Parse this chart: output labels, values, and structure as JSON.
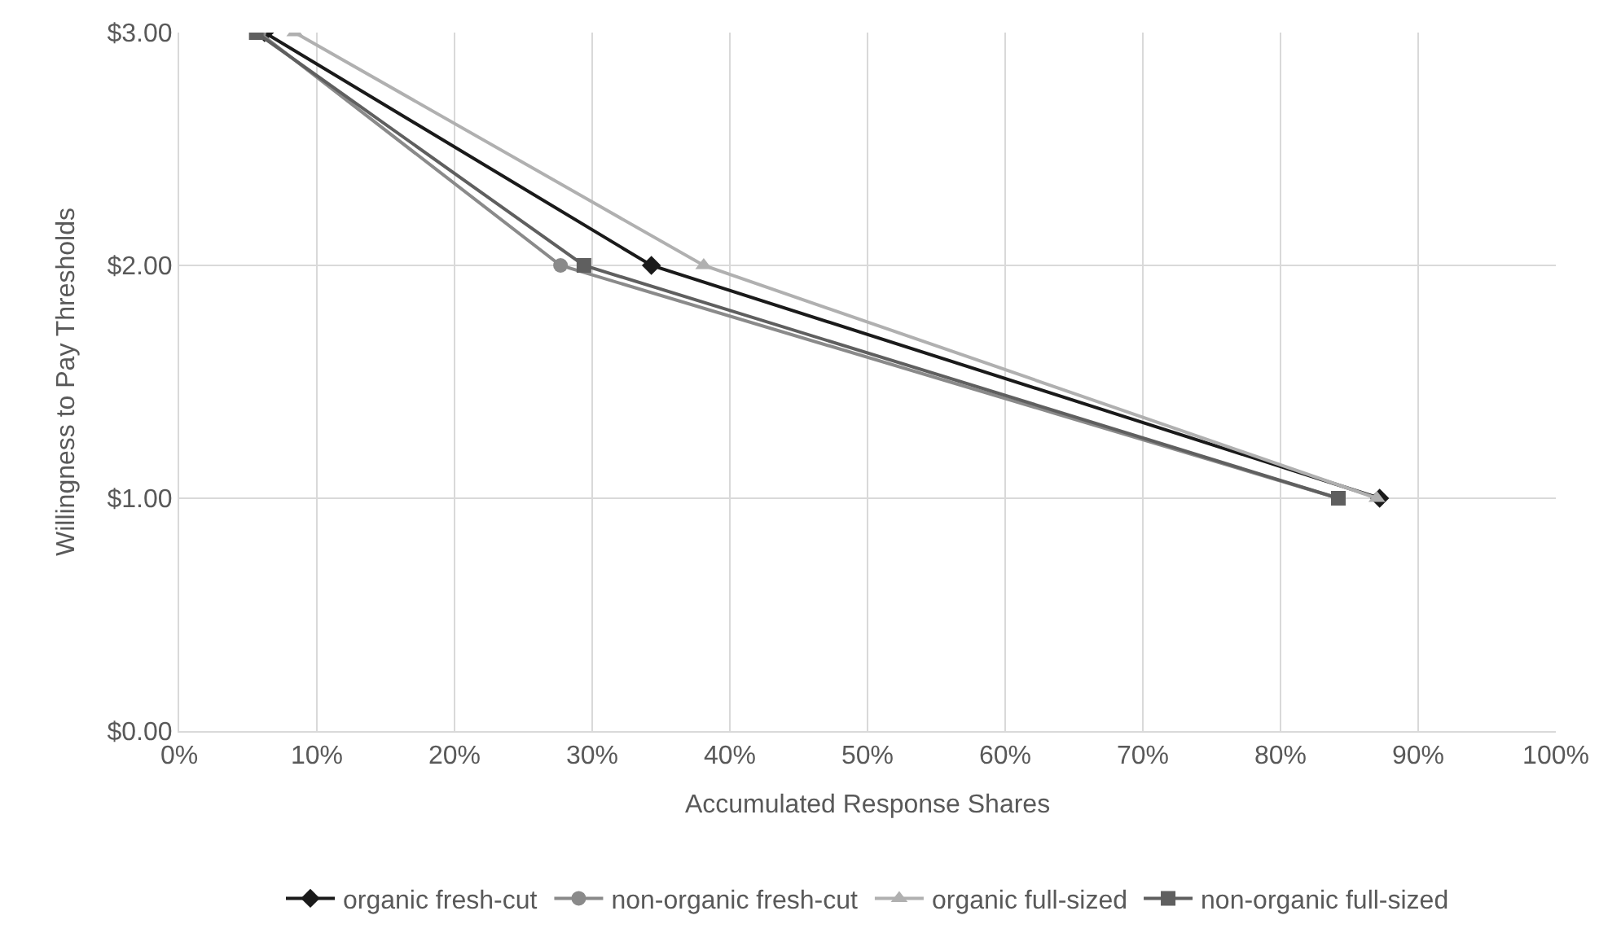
{
  "chart_data": {
    "type": "line",
    "xlabel": "Accumulated Response Shares",
    "ylabel": "Willingness to Pay Thresholds",
    "xlim": [
      0,
      100
    ],
    "xticks": [
      {
        "value": 0,
        "label": "0%"
      },
      {
        "value": 10,
        "label": "10%"
      },
      {
        "value": 20,
        "label": "20%"
      },
      {
        "value": 30,
        "label": "30%"
      },
      {
        "value": 40,
        "label": "40%"
      },
      {
        "value": 50,
        "label": "50%"
      },
      {
        "value": 60,
        "label": "60%"
      },
      {
        "value": 70,
        "label": "70%"
      },
      {
        "value": 80,
        "label": "80%"
      },
      {
        "value": 90,
        "label": "90%"
      },
      {
        "value": 100,
        "label": "100%"
      }
    ],
    "ylim": [
      0,
      3
    ],
    "yticks": [
      {
        "value": 0,
        "label": "$0.00"
      },
      {
        "value": 1,
        "label": "$1.00"
      },
      {
        "value": 2,
        "label": "$2.00"
      },
      {
        "value": 3,
        "label": "$3.00"
      }
    ],
    "grid": true,
    "legend": "bottom",
    "line_style": "solid",
    "series": [
      {
        "name": "non-organic full-sized",
        "color": "#5f5f5f",
        "marker": "square",
        "x": [
          5.6,
          29.4,
          84.2
        ],
        "values": [
          3,
          2,
          1
        ]
      },
      {
        "name": "organic full-sized",
        "color": "#b0b0b0",
        "marker": "triangle",
        "x": [
          8.4,
          38.1,
          87.0
        ],
        "values": [
          3,
          2,
          1
        ]
      },
      {
        "name": "non-organic fresh-cut",
        "color": "#8a8a8a",
        "marker": "circle",
        "x": [
          5.8,
          27.7,
          84.2
        ],
        "values": [
          3,
          2,
          1
        ]
      },
      {
        "name": "organic fresh-cut",
        "color": "#1a1a1a",
        "marker": "diamond",
        "x": [
          6.2,
          34.3,
          87.2
        ],
        "values": [
          3,
          2,
          1
        ]
      }
    ]
  }
}
